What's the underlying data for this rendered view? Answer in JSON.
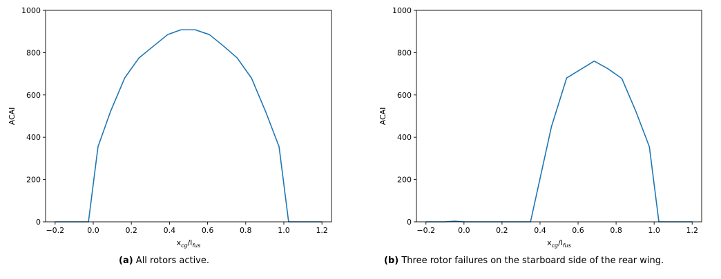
{
  "captions": [
    {
      "tag": "(a)",
      "text": "All rotors active."
    },
    {
      "tag": "(b)",
      "text": "Three rotor failures on the starboard side of the rear wing."
    }
  ],
  "line_color": "#1f77b4",
  "chart_data": [
    {
      "type": "line",
      "xlabel_main": "x",
      "xlabel_sub1": "cg",
      "xlabel_mid": "/l",
      "xlabel_sub2": "fus",
      "ylabel": "ACAI",
      "xlim": [
        -0.25,
        1.25
      ],
      "ylim": [
        0,
        1000
      ],
      "xticks": [
        -0.2,
        0.0,
        0.2,
        0.4,
        0.6,
        0.8,
        1.0,
        1.2
      ],
      "yticks": [
        0,
        200,
        400,
        600,
        800,
        1000
      ],
      "xtick_labels": [
        "−0.2",
        "0.0",
        "0.2",
        "0.4",
        "0.6",
        "0.8",
        "1.0",
        "1.2"
      ],
      "ytick_labels": [
        "0",
        "200",
        "400",
        "600",
        "800",
        "1000"
      ],
      "x": [
        -0.2,
        -0.025,
        0.025,
        0.09,
        0.165,
        0.24,
        0.315,
        0.39,
        0.46,
        0.535,
        0.61,
        0.685,
        0.755,
        0.83,
        0.905,
        0.975,
        1.025,
        1.2
      ],
      "y": [
        0,
        0,
        355,
        520,
        680,
        775,
        830,
        885,
        908,
        908,
        885,
        830,
        775,
        680,
        520,
        355,
        0,
        0
      ]
    },
    {
      "type": "line",
      "xlabel_main": "x",
      "xlabel_sub1": "cg",
      "xlabel_mid": "/l",
      "xlabel_sub2": "fus",
      "ylabel": "ACAI",
      "xlim": [
        -0.25,
        1.25
      ],
      "ylim": [
        0,
        1000
      ],
      "xticks": [
        -0.2,
        0.0,
        0.2,
        0.4,
        0.6,
        0.8,
        1.0,
        1.2
      ],
      "yticks": [
        0,
        200,
        400,
        600,
        800,
        1000
      ],
      "xtick_labels": [
        "−0.2",
        "0.0",
        "0.2",
        "0.4",
        "0.6",
        "0.8",
        "1.0",
        "1.2"
      ],
      "ytick_labels": [
        "0",
        "200",
        "400",
        "600",
        "800",
        "1000"
      ],
      "x": [
        -0.2,
        -0.1,
        -0.05,
        0.0,
        0.1,
        0.2,
        0.3,
        0.35,
        0.46,
        0.54,
        0.685,
        0.755,
        0.83,
        0.905,
        0.975,
        1.025,
        1.2
      ],
      "y": [
        0,
        0,
        3,
        0,
        0,
        0,
        0,
        0,
        450,
        680,
        760,
        725,
        678,
        520,
        355,
        0,
        0
      ]
    }
  ]
}
